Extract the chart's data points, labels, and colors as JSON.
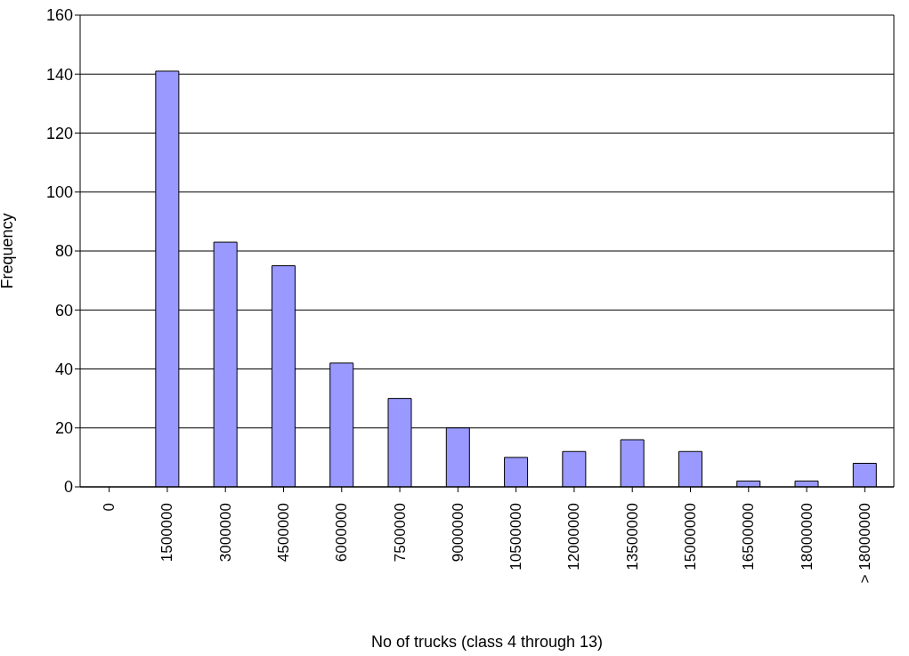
{
  "chart_data": {
    "type": "bar",
    "xlabel": "No of trucks (class 4 through 13)",
    "ylabel": "Frequency",
    "categories": [
      "0",
      "1500000",
      "3000000",
      "4500000",
      "6000000",
      "7500000",
      "9000000",
      "10500000",
      "12000000",
      "13500000",
      "15000000",
      "16500000",
      "18000000",
      "> 18000000"
    ],
    "values": [
      0,
      141,
      83,
      75,
      42,
      30,
      20,
      10,
      12,
      16,
      12,
      2,
      2,
      8
    ],
    "color": "#9999ff",
    "ylim": [
      0,
      160
    ],
    "yticks": [
      0,
      20,
      40,
      60,
      80,
      100,
      120,
      140,
      160
    ],
    "grid": "y",
    "legend": false
  }
}
